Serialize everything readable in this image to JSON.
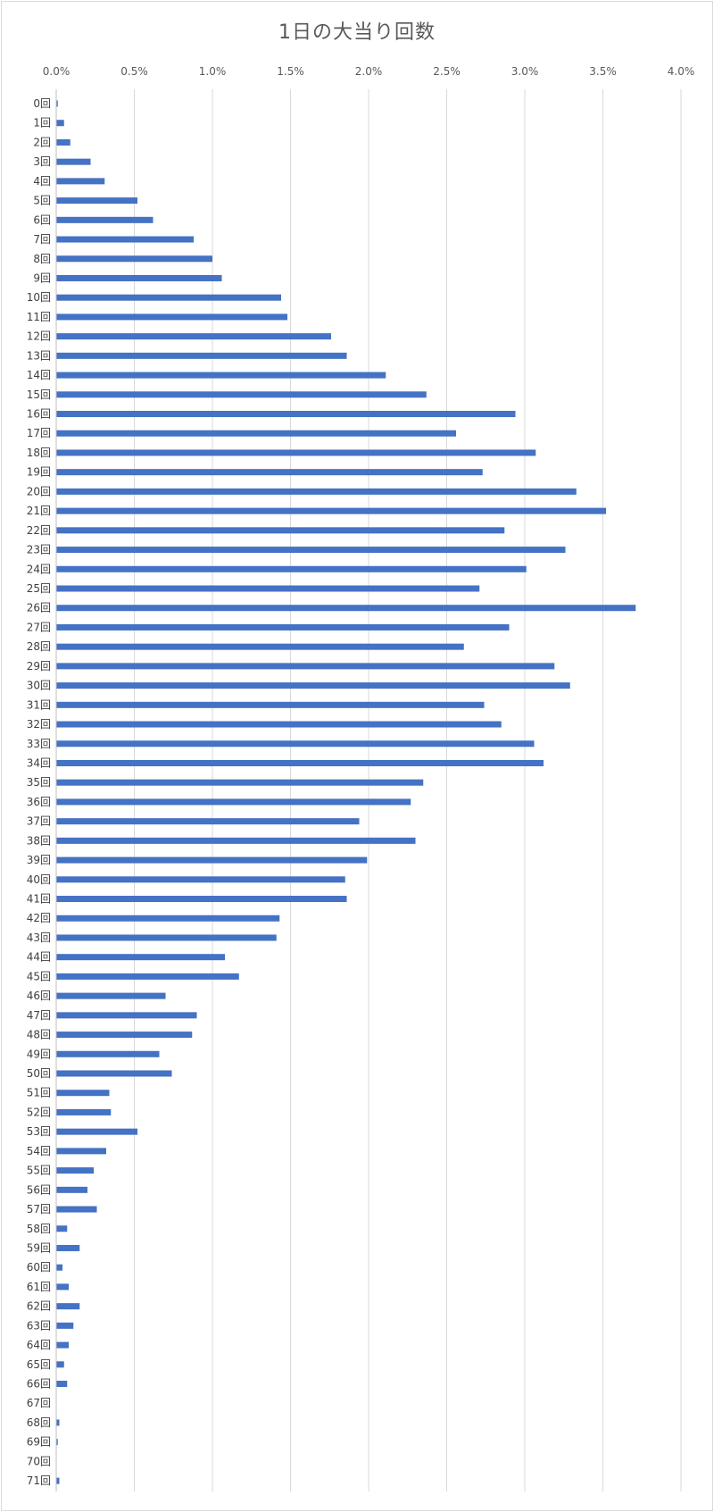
{
  "chart_data": {
    "type": "bar",
    "orientation": "horizontal",
    "title": "1日の大当り回数",
    "xlabel": "",
    "ylabel": "",
    "xlim": [
      0,
      0.04
    ],
    "x_ticks": [
      "0.0%",
      "0.5%",
      "1.0%",
      "1.5%",
      "2.0%",
      "2.5%",
      "3.0%",
      "3.5%",
      "4.0%"
    ],
    "grid": true,
    "legend": "none",
    "bar_color": "#4472c4",
    "categories": [
      "0回",
      "1回",
      "2回",
      "3回",
      "4回",
      "5回",
      "6回",
      "7回",
      "8回",
      "9回",
      "10回",
      "11回",
      "12回",
      "13回",
      "14回",
      "15回",
      "16回",
      "17回",
      "18回",
      "19回",
      "20回",
      "21回",
      "22回",
      "23回",
      "24回",
      "25回",
      "26回",
      "27回",
      "28回",
      "29回",
      "30回",
      "31回",
      "32回",
      "33回",
      "34回",
      "35回",
      "36回",
      "37回",
      "38回",
      "39回",
      "40回",
      "41回",
      "42回",
      "43回",
      "44回",
      "45回",
      "46回",
      "47回",
      "48回",
      "49回",
      "50回",
      "51回",
      "52回",
      "53回",
      "54回",
      "55回",
      "56回",
      "57回",
      "58回",
      "59回",
      "60回",
      "61回",
      "62回",
      "63回",
      "64回",
      "65回",
      "66回",
      "67回",
      "68回",
      "69回",
      "70回",
      "71回"
    ],
    "values": [
      0.0001,
      0.0005,
      0.0009,
      0.0022,
      0.0031,
      0.0052,
      0.0062,
      0.0088,
      0.01,
      0.0106,
      0.0144,
      0.0148,
      0.0176,
      0.0186,
      0.0211,
      0.0237,
      0.0294,
      0.0256,
      0.0307,
      0.0273,
      0.0333,
      0.0352,
      0.0287,
      0.0326,
      0.0301,
      0.0271,
      0.0371,
      0.029,
      0.0261,
      0.0319,
      0.0329,
      0.0274,
      0.0285,
      0.0306,
      0.0312,
      0.0235,
      0.0227,
      0.0194,
      0.023,
      0.0199,
      0.0185,
      0.0186,
      0.0143,
      0.0141,
      0.0108,
      0.0117,
      0.007,
      0.009,
      0.0087,
      0.0066,
      0.0074,
      0.0034,
      0.0035,
      0.0052,
      0.0032,
      0.0024,
      0.002,
      0.0026,
      0.0007,
      0.0015,
      0.0004,
      0.0008,
      0.0015,
      0.0011,
      0.0008,
      0.0005,
      0.0007,
      0.0,
      0.0002,
      0.0001,
      0.0,
      0.0002
    ]
  }
}
